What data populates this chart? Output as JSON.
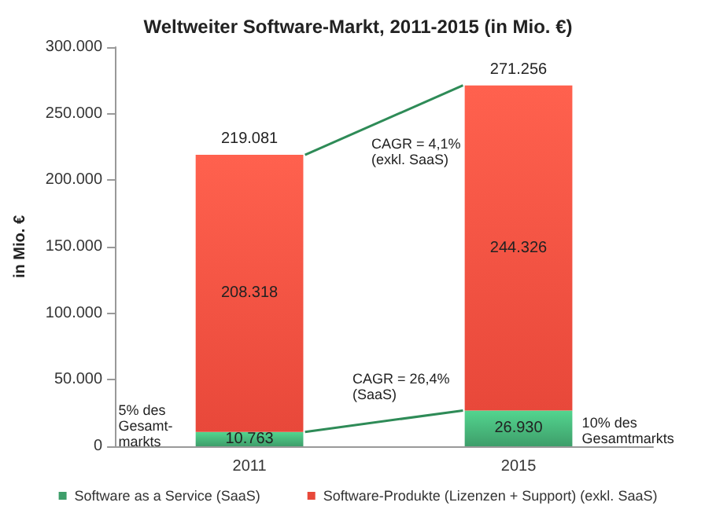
{
  "chart_data": {
    "type": "bar",
    "stacked": true,
    "title": "Weltweiter Software-Markt, 2011-2015 (in Mio. €)",
    "ylabel": "in Mio. €",
    "categories": [
      "2011",
      "2015"
    ],
    "series": [
      {
        "name": "Software as a Service (SaaS)",
        "color": "#3e9e6a",
        "values": [
          10763,
          26930
        ],
        "value_labels": [
          "10.763",
          "26.930"
        ]
      },
      {
        "name": "Software-Produkte (Lizenzen + Support) (exkl. SaaS)",
        "color": "#e8483a",
        "values": [
          208318,
          244326
        ],
        "value_labels": [
          "208.318",
          "244.326"
        ]
      }
    ],
    "totals": [
      "219.081",
      "271.256"
    ],
    "ylim": [
      0,
      300000
    ],
    "yticks": [
      {
        "value": 0,
        "label": "0"
      },
      {
        "value": 50000,
        "label": "50.000"
      },
      {
        "value": 100000,
        "label": "100.000"
      },
      {
        "value": 150000,
        "label": "150.000"
      },
      {
        "value": 200000,
        "label": "200.000"
      },
      {
        "value": 250000,
        "label": "250.000"
      },
      {
        "value": 300000,
        "label": "300.000"
      }
    ],
    "annotations": [
      "CAGR = 4,1%\n(exkl. SaaS)",
      "CAGR = 26,4%\n(SaaS)",
      "5% des\nGesamt-\nmarkts",
      "10% des\nGesamtmarkts"
    ],
    "grid": false,
    "legend": "bottom"
  }
}
